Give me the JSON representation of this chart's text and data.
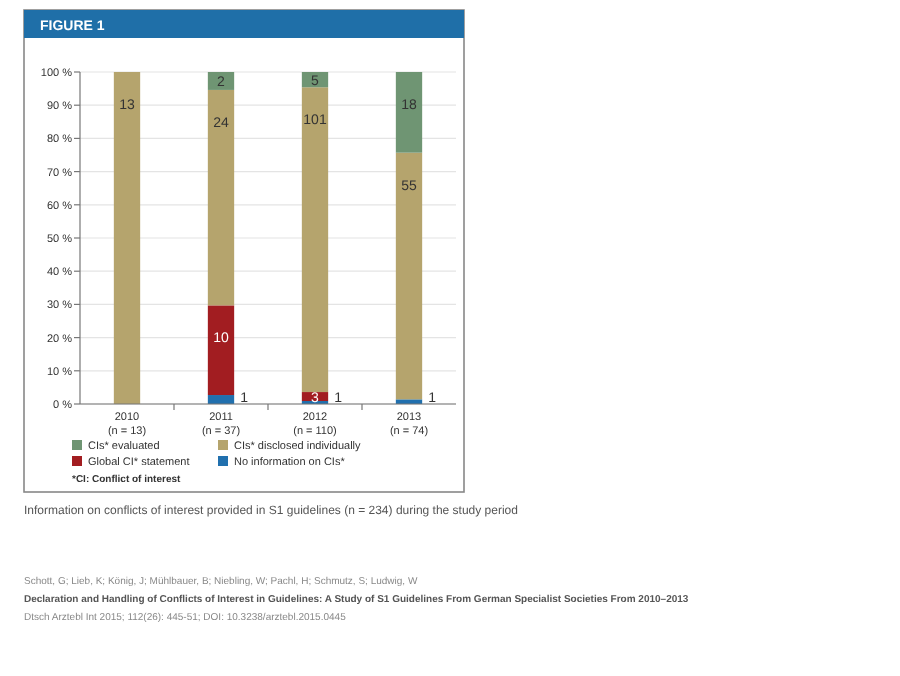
{
  "chart_data": {
    "type": "bar",
    "title": "FIGURE 1",
    "stacked": true,
    "categories": [
      "2010\n(n = 13)",
      "2011\n(n = 37)",
      "2012\n(n = 110)",
      "2013\n(n = 74)"
    ],
    "series": [
      {
        "name": "No information on CIs*",
        "color": "#2170ae",
        "values": [
          0,
          2.7,
          0.9,
          1.4
        ]
      },
      {
        "name": "Global CI* statement",
        "color": "#a21d21",
        "values": [
          0,
          27.0,
          2.7,
          0
        ]
      },
      {
        "name": "CIs* disclosed individually",
        "color": "#b5a46d",
        "values": [
          100,
          64.9,
          91.8,
          74.3
        ]
      },
      {
        "name": "CIs* evaluated",
        "color": "#6f9573",
        "values": [
          0,
          5.4,
          4.6,
          24.3
        ]
      }
    ],
    "ylim": [
      0,
      100
    ],
    "yticks": [
      {
        "value": 0,
        "label": "0 %"
      },
      {
        "value": 10,
        "label": "10 %"
      },
      {
        "value": 20,
        "label": "20 %"
      },
      {
        "value": 30,
        "label": "30 %"
      },
      {
        "value": 40,
        "label": "40 %"
      },
      {
        "value": 50,
        "label": "50 %"
      },
      {
        "value": 60,
        "label": "60 %"
      },
      {
        "value": 70,
        "label": "70 %"
      },
      {
        "value": 80,
        "label": "80 %"
      },
      {
        "value": 90,
        "label": "90 %"
      },
      {
        "value": 100,
        "label": "100 %"
      }
    ],
    "grid": "y",
    "legend": "bottom",
    "annotations": [
      {
        "text": "13",
        "x": "2010\n(n = 13)",
        "y": 100
      },
      {
        "text": "1",
        "x": "2011\n(n = 37)",
        "y": 2.7
      },
      {
        "text": "10",
        "x": "2011\n(n = 37)",
        "y": 29.7
      },
      {
        "text": "24",
        "x": "2011\n(n = 37)",
        "y": 94.6
      },
      {
        "text": "2",
        "x": "2011\n(n = 37)",
        "y": 100
      },
      {
        "text": "1",
        "x": "2012\n(n = 110)",
        "y": 0.9
      },
      {
        "text": "3",
        "x": "2012\n(n = 110)",
        "y": 3.6
      },
      {
        "text": "101",
        "x": "2012\n(n = 110)",
        "y": 95.4
      },
      {
        "text": "5",
        "x": "2012\n(n = 110)",
        "y": 100
      },
      {
        "text": "1",
        "x": "2013\n(n = 74)",
        "y": 1.4
      },
      {
        "text": "55",
        "x": "2013\n(n = 74)",
        "y": 75.7
      },
      {
        "text": "18",
        "x": "2013\n(n = 74)",
        "y": 100
      },
      "*CI: Conflict of interest",
      "Information on conflicts of interest provided in S1 guidelines (n = 234) during the study period",
      "Schott, G; Lieb, K; König, J; Mühlbauer, B; Niebling, W; Pachl, H; Schmutz, S; Ludwig, W",
      "Declaration and Handling of Conflicts of Interest in Guidelines: A Study of S1 Guidelines From German Specialist Societies From 2010–2013",
      "Dtsch Arztebl Int 2015; 112(26): 445-51; DOI: 10.3238/arztebl.2015.0445"
    ]
  }
}
